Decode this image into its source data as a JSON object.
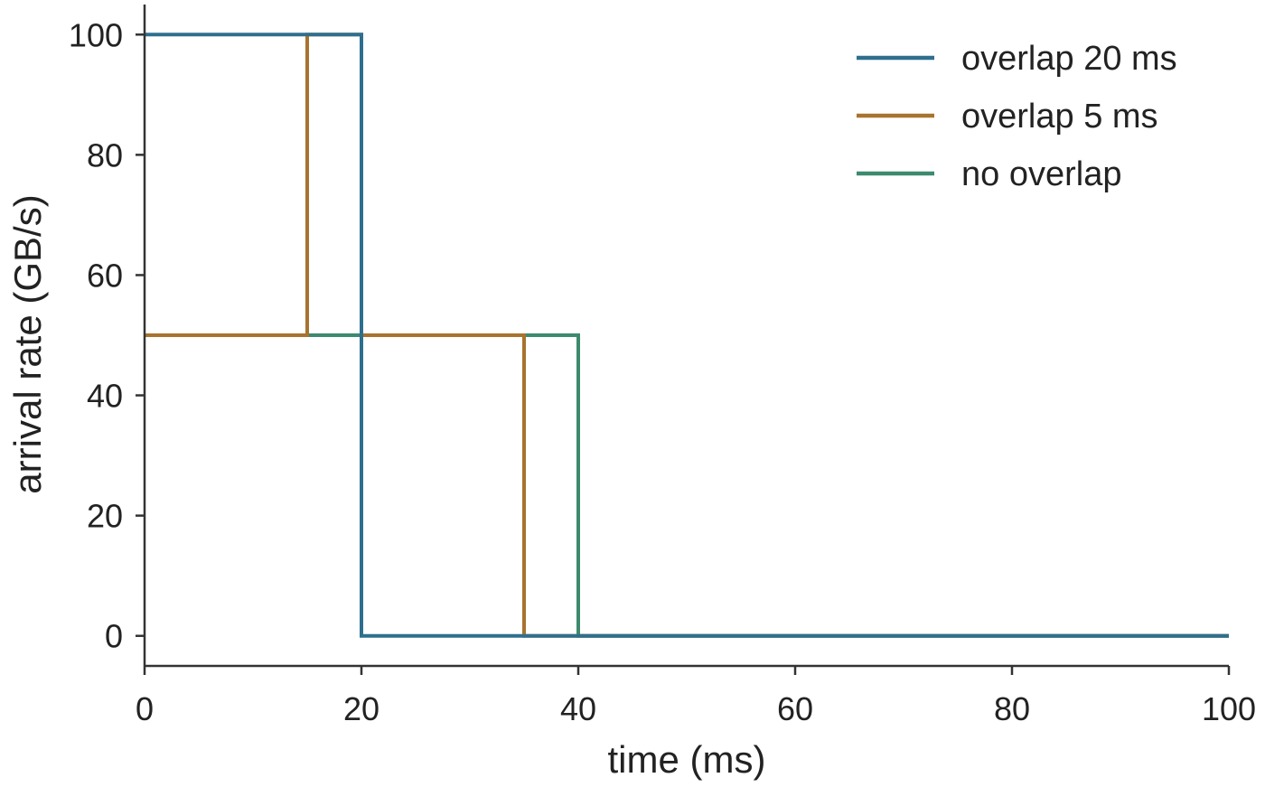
{
  "chart_data": {
    "type": "line",
    "step": true,
    "xlabel": "time (ms)",
    "ylabel": "arrival rate (GB/s)",
    "xlim": [
      0,
      100
    ],
    "ylim": [
      -5,
      105
    ],
    "xticks": [
      0,
      20,
      40,
      60,
      80,
      100
    ],
    "yticks": [
      0,
      20,
      40,
      60,
      80,
      100
    ],
    "grid": false,
    "legend_position": "top-right",
    "series": [
      {
        "name": "overlap 20 ms",
        "color": "#2e6f8e",
        "x": [
          0,
          20,
          20,
          100
        ],
        "y": [
          100,
          100,
          0,
          0
        ]
      },
      {
        "name": "overlap 5 ms",
        "color": "#a8732e",
        "x": [
          0,
          15,
          15,
          20,
          20,
          35,
          35,
          40,
          40,
          100
        ],
        "y": [
          50,
          50,
          100,
          100,
          50,
          50,
          0,
          0,
          0,
          0
        ]
      },
      {
        "name": "no overlap",
        "color": "#3d8a6e",
        "x": [
          0,
          40,
          40,
          100
        ],
        "y": [
          50,
          50,
          0,
          0
        ]
      }
    ]
  }
}
